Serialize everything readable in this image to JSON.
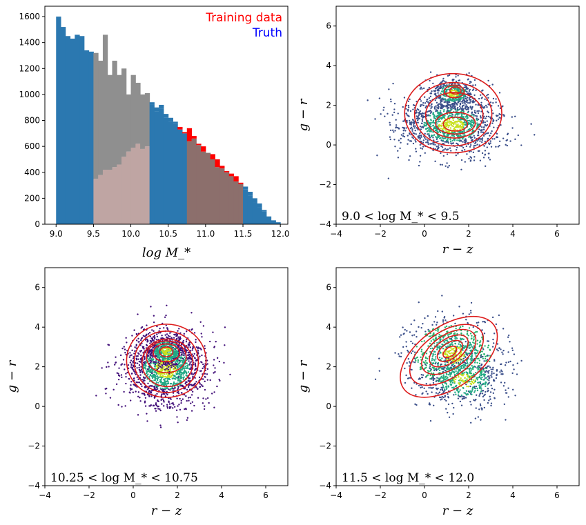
{
  "figure": {
    "background": "#ffffff",
    "colors": {
      "truth_bar": "#2b78b0",
      "training_bar": "#ff0000",
      "overlap_bar": "#8c6f6c",
      "gray_bar": "#8f8f8f",
      "pink_bar": "#bfa5a3",
      "contour": "#dd1c1c",
      "scatter_dark": "#3b4f8a",
      "scatter_purple": "#43117a",
      "scatter_teal": "#22a884",
      "scatter_green": "#26b36e",
      "scatter_yellow": "#c8e020"
    }
  },
  "chart_data": [
    {
      "type": "bar",
      "panel": "top-left",
      "xlabel": "log M_*",
      "xlim": [
        8.85,
        12.1
      ],
      "ylim": [
        0,
        1680
      ],
      "xticks": [
        "9.0",
        "9.5",
        "10.0",
        "10.5",
        "11.0",
        "11.5",
        "12.0"
      ],
      "yticks": [
        "0",
        "200",
        "400",
        "600",
        "800",
        "1000",
        "1200",
        "1400",
        "1600"
      ],
      "bin_width": 0.0625,
      "bin_starts": [
        9.0,
        9.0625,
        9.125,
        9.1875,
        9.25,
        9.3125,
        9.375,
        9.4375,
        9.5,
        9.5625,
        9.625,
        9.6875,
        9.75,
        9.8125,
        9.875,
        9.9375,
        10.0,
        10.0625,
        10.125,
        10.1875,
        10.25,
        10.3125,
        10.375,
        10.4375,
        10.5,
        10.5625,
        10.625,
        10.6875,
        10.75,
        10.8125,
        10.875,
        10.9375,
        11.0,
        11.0625,
        11.125,
        11.1875,
        11.25,
        11.3125,
        11.375,
        11.4375,
        11.5,
        11.5625,
        11.625,
        11.6875,
        11.75,
        11.8125,
        11.875,
        11.9375
      ],
      "series": [
        {
          "name": "Training data",
          "values": [
            1600,
            1520,
            1450,
            1430,
            1460,
            1450,
            1340,
            1330,
            1320,
            1260,
            1460,
            1150,
            1260,
            1150,
            1200,
            1000,
            1150,
            1090,
            1000,
            1010,
            920,
            870,
            890,
            820,
            790,
            780,
            750,
            710,
            740,
            680,
            620,
            600,
            550,
            540,
            500,
            450,
            410,
            390,
            370,
            320,
            270,
            220,
            170,
            130,
            100,
            60,
            30,
            15
          ]
        },
        {
          "name": "Truth",
          "values": [
            1600,
            1520,
            1450,
            1430,
            1460,
            1450,
            1340,
            1330,
            350,
            380,
            420,
            420,
            440,
            460,
            520,
            560,
            590,
            620,
            580,
            600,
            940,
            900,
            920,
            850,
            820,
            790,
            730,
            700,
            640,
            660,
            610,
            560,
            550,
            500,
            440,
            430,
            400,
            370,
            330,
            310,
            290,
            250,
            200,
            160,
            110,
            60,
            30,
            15
          ]
        }
      ]
    },
    {
      "type": "scatter",
      "panel": "top-right",
      "xlabel": "r − z",
      "ylabel": "g − r",
      "xlim": [
        -4,
        7
      ],
      "ylim": [
        -4,
        7
      ],
      "xticks": [
        "−4",
        "−2",
        "0",
        "2",
        "4",
        "6"
      ],
      "yticks": [
        "−4",
        "−2",
        "0",
        "2",
        "4",
        "6"
      ],
      "annotation": "9.0 < log M_* < 9.5",
      "clusters": [
        {
          "cx": 1.2,
          "cy": 1.0,
          "sx": 1.15,
          "sy": 0.75,
          "n": 1300
        },
        {
          "cx": 1.3,
          "cy": 2.6,
          "sx": 0.55,
          "sy": 0.4,
          "n": 450
        }
      ],
      "contours": [
        {
          "cx": 1.4,
          "cy": 2.75,
          "rx": 0.25,
          "ry": 0.18
        },
        {
          "cx": 1.35,
          "cy": 2.7,
          "rx": 0.45,
          "ry": 0.32
        },
        {
          "cx": 1.4,
          "cy": 1.05,
          "rx": 0.55,
          "ry": 0.35
        },
        {
          "cx": 1.4,
          "cy": 1.1,
          "rx": 0.9,
          "ry": 0.55
        },
        {
          "cx": 1.35,
          "cy": 1.5,
          "rx": 1.3,
          "ry": 1.15
        },
        {
          "cx": 1.3,
          "cy": 1.55,
          "rx": 1.75,
          "ry": 1.6
        },
        {
          "cx": 1.3,
          "cy": 1.6,
          "rx": 2.2,
          "ry": 2.0
        }
      ]
    },
    {
      "type": "scatter",
      "panel": "bottom-left",
      "xlabel": "r − z",
      "ylabel": "g − r",
      "xlim": [
        -4,
        7
      ],
      "ylim": [
        -4,
        7
      ],
      "xticks": [
        "−4",
        "−2",
        "0",
        "2",
        "4",
        "6"
      ],
      "yticks": [
        "−4",
        "−2",
        "0",
        "2",
        "4",
        "6"
      ],
      "annotation": "10.25 < log M_* < 10.75",
      "clusters": [
        {
          "cx": 1.5,
          "cy": 1.9,
          "sx": 0.95,
          "sy": 0.95,
          "n": 1500
        },
        {
          "cx": 1.5,
          "cy": 2.8,
          "sx": 0.5,
          "sy": 0.45,
          "n": 500
        }
      ],
      "contours": [
        {
          "cx": 1.5,
          "cy": 2.75,
          "rx": 0.3,
          "ry": 0.25
        },
        {
          "cx": 1.5,
          "cy": 2.7,
          "rx": 0.6,
          "ry": 0.45
        },
        {
          "cx": 1.5,
          "cy": 2.5,
          "rx": 0.9,
          "ry": 0.8
        },
        {
          "cx": 1.55,
          "cy": 2.2,
          "rx": 1.15,
          "ry": 1.2
        },
        {
          "cx": 1.5,
          "cy": 2.25,
          "rx": 1.45,
          "ry": 1.55
        },
        {
          "cx": 1.5,
          "cy": 2.3,
          "rx": 1.8,
          "ry": 1.85
        }
      ]
    },
    {
      "type": "scatter",
      "panel": "bottom-right",
      "xlabel": "r − z",
      "ylabel": "g − r",
      "xlim": [
        -4,
        7
      ],
      "ylim": [
        -4,
        7
      ],
      "xticks": [
        "−4",
        "−2",
        "0",
        "2",
        "4",
        "6"
      ],
      "yticks": [
        "−4",
        "−2",
        "0",
        "2",
        "4",
        "6"
      ],
      "annotation": "11.5 < log M_* < 12.0",
      "clusters": [
        {
          "cx": 1.3,
          "cy": 2.6,
          "sx": 1.0,
          "sy": 0.9,
          "n": 900
        },
        {
          "cx": 1.8,
          "cy": 1.3,
          "sx": 1.0,
          "sy": 0.7,
          "n": 500
        }
      ],
      "contours": [
        {
          "cx": 1.15,
          "cy": 2.75,
          "rx": 0.35,
          "ry": 0.22
        },
        {
          "cx": 1.15,
          "cy": 2.8,
          "rx": 0.65,
          "ry": 0.4
        },
        {
          "cx": 1.1,
          "cy": 2.8,
          "rx": 1.0,
          "ry": 0.6
        },
        {
          "cx": 1.1,
          "cy": 2.75,
          "rx": 1.4,
          "ry": 0.85
        },
        {
          "cx": 1.0,
          "cy": 2.6,
          "rx": 1.9,
          "ry": 1.15
        },
        {
          "cx": 1.1,
          "cy": 2.5,
          "rx": 2.5,
          "ry": 1.55
        }
      ]
    }
  ],
  "legend": {
    "items": [
      {
        "label": "Training data",
        "color": "#ff0000"
      },
      {
        "label": "Truth",
        "color": "#0000ff"
      }
    ]
  }
}
